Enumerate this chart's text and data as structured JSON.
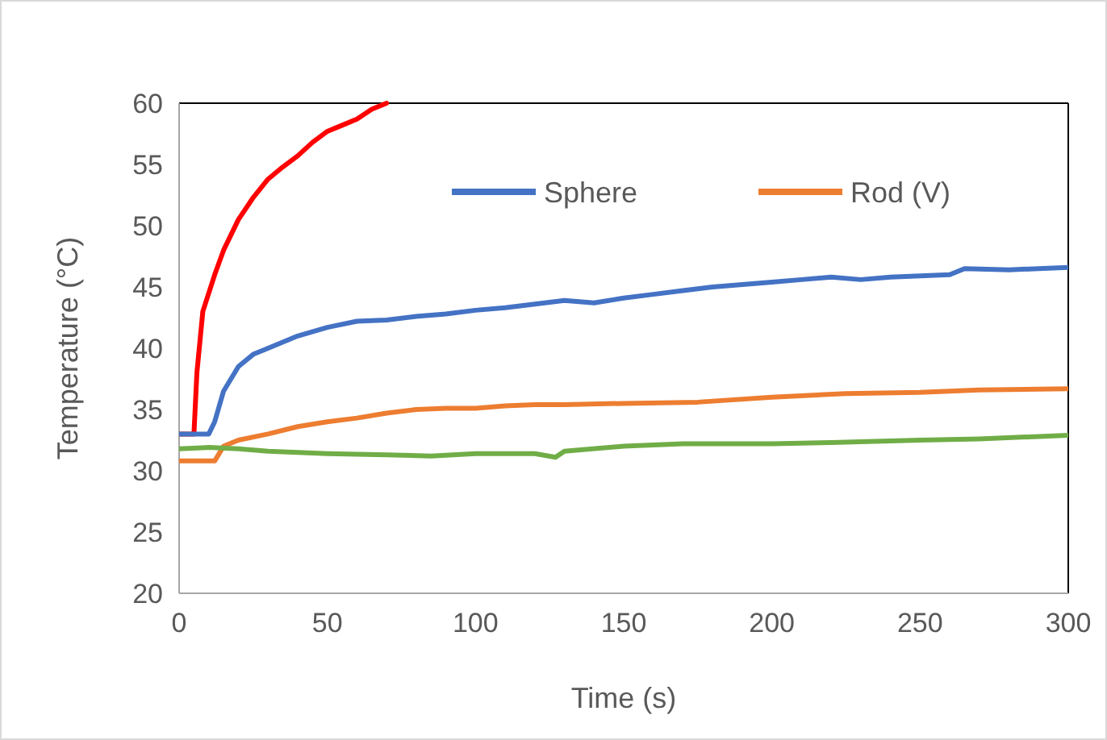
{
  "chart_data": {
    "type": "line",
    "xlabel": "Time (s)",
    "ylabel": "Temperature (°C)",
    "xlim": [
      0,
      300
    ],
    "xticks": [
      0,
      50,
      100,
      150,
      200,
      250,
      300
    ],
    "ylim": [
      20,
      60
    ],
    "yticks": [
      20,
      25,
      30,
      35,
      40,
      45,
      50,
      55,
      60
    ],
    "grid": false,
    "legend": "top",
    "line_style": "solid",
    "marker": "none",
    "series": [
      {
        "color": "#ff0000",
        "x": [
          0,
          5,
          6,
          8,
          12,
          15,
          20,
          25,
          30,
          35,
          40,
          45,
          50,
          55,
          60,
          65,
          70
        ],
        "values": [
          33,
          33,
          38,
          43,
          46,
          48,
          50.5,
          52.3,
          53.8,
          54.8,
          55.7,
          56.8,
          57.7,
          58.2,
          58.7,
          59.5,
          60
        ]
      },
      {
        "name": "Sphere",
        "color": "#4472c4",
        "x": [
          0,
          10,
          12,
          15,
          20,
          25,
          30,
          40,
          50,
          60,
          70,
          80,
          90,
          100,
          110,
          120,
          130,
          140,
          150,
          160,
          170,
          180,
          190,
          200,
          210,
          220,
          230,
          240,
          250,
          260,
          265,
          280,
          290,
          300
        ],
        "values": [
          33,
          33,
          34,
          36.5,
          38.5,
          39.5,
          40,
          41,
          41.7,
          42.2,
          42.3,
          42.6,
          42.8,
          43.1,
          43.3,
          43.6,
          43.9,
          43.7,
          44.1,
          44.4,
          44.7,
          45,
          45.2,
          45.4,
          45.6,
          45.8,
          45.6,
          45.8,
          45.9,
          46,
          46.5,
          46.4,
          46.5,
          46.6
        ]
      },
      {
        "name": "Rod (V)",
        "color": "#ed7d31",
        "x": [
          0,
          12,
          15,
          20,
          30,
          40,
          50,
          60,
          70,
          80,
          90,
          100,
          110,
          120,
          130,
          150,
          175,
          200,
          225,
          250,
          270,
          300
        ],
        "values": [
          30.8,
          30.8,
          32,
          32.5,
          33,
          33.6,
          34,
          34.3,
          34.7,
          35,
          35.1,
          35.1,
          35.3,
          35.4,
          35.4,
          35.5,
          35.6,
          36,
          36.3,
          36.4,
          36.6,
          36.7
        ]
      },
      {
        "color": "#70ad47",
        "x": [
          0,
          10,
          20,
          30,
          50,
          70,
          85,
          100,
          120,
          127,
          130,
          150,
          170,
          200,
          220,
          250,
          270,
          300
        ],
        "values": [
          31.8,
          31.9,
          31.8,
          31.6,
          31.4,
          31.3,
          31.2,
          31.4,
          31.4,
          31.1,
          31.6,
          32,
          32.2,
          32.2,
          32.3,
          32.5,
          32.6,
          32.9
        ]
      }
    ]
  }
}
